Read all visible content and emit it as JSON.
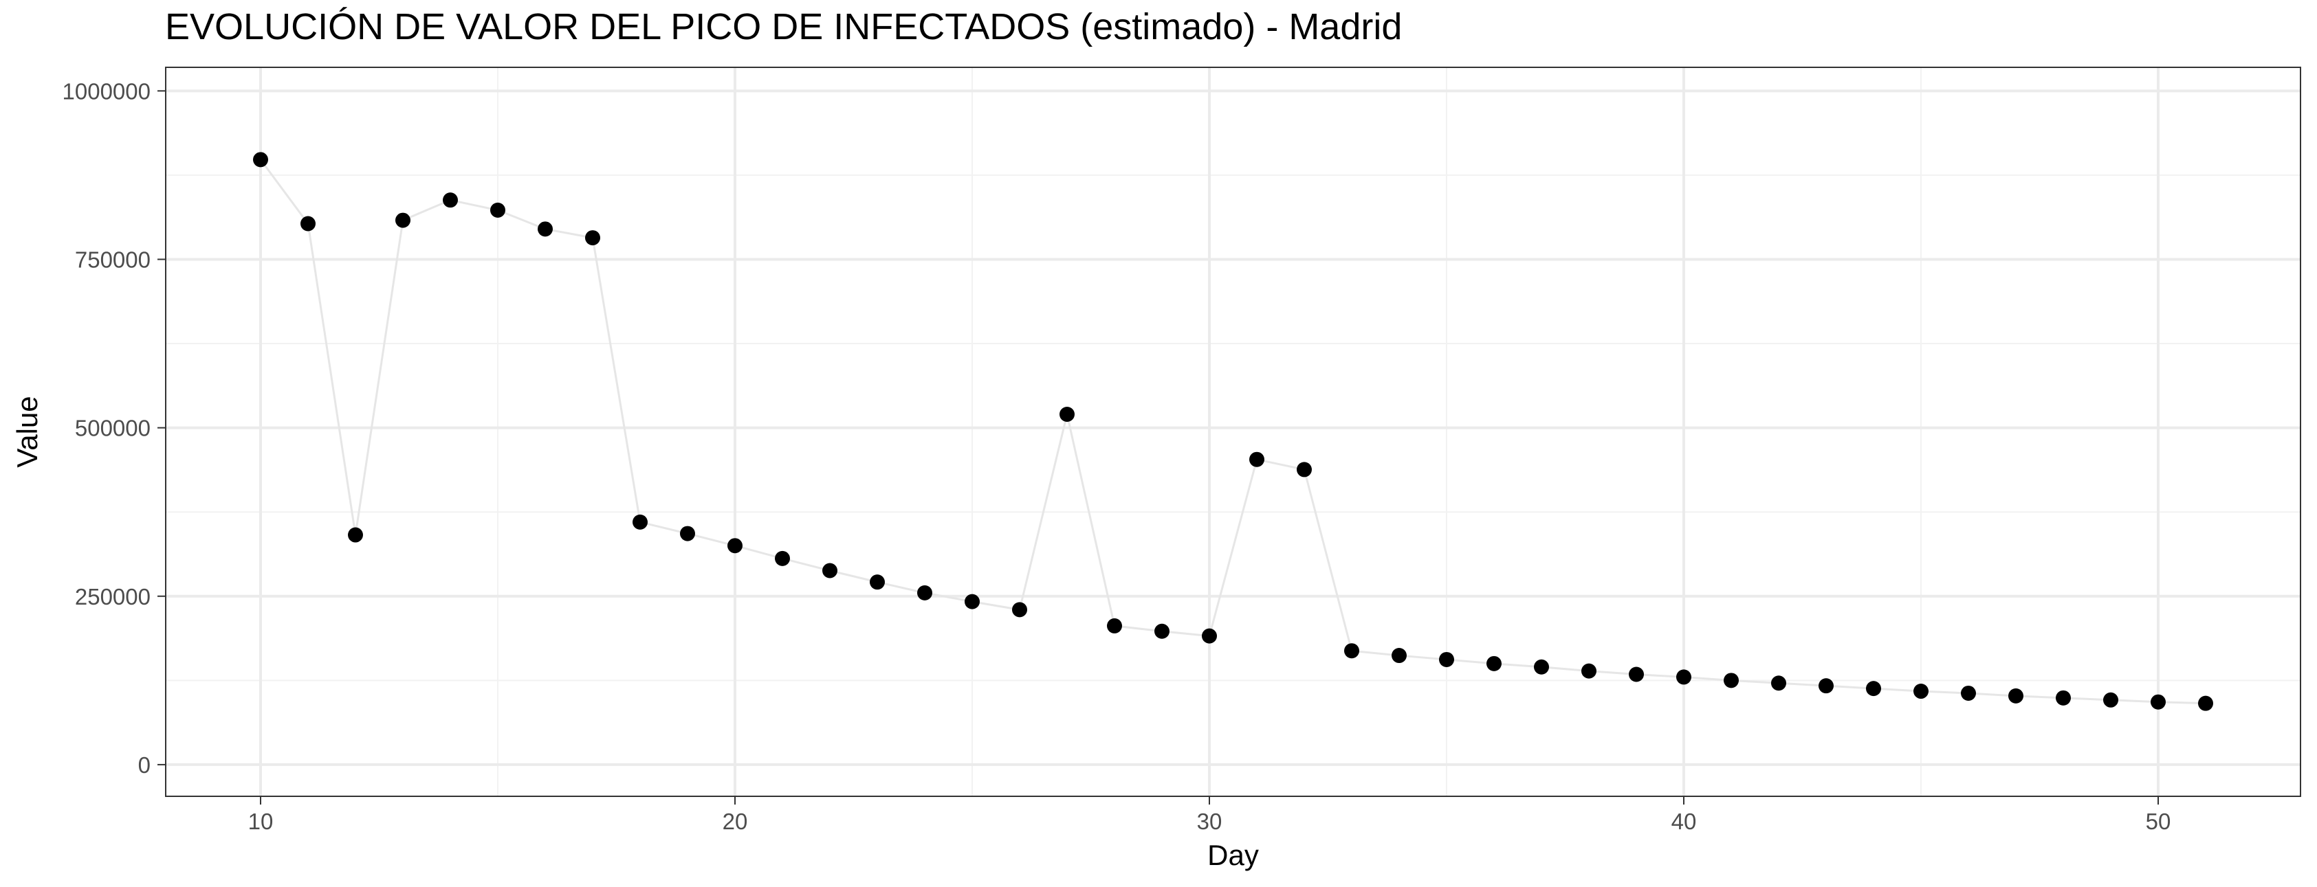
{
  "chart_data": {
    "type": "scatter",
    "title": "EVOLUCIÓN DE VALOR DEL PICO DE INFECTADOS (estimado) - Madrid",
    "xlabel": "Day",
    "ylabel": "Value",
    "xlim": [
      8,
      53
    ],
    "ylim": [
      -47000,
      1035000
    ],
    "x_ticks": [
      10,
      20,
      30,
      40,
      50
    ],
    "y_ticks": [
      0,
      250000,
      500000,
      750000,
      1000000
    ],
    "grid": true,
    "legend": "none",
    "point_color": "#000000",
    "line_color": "#e6e6e6",
    "x": [
      10,
      11,
      12,
      13,
      14,
      15,
      16,
      17,
      18,
      19,
      20,
      21,
      22,
      23,
      24,
      25,
      26,
      27,
      28,
      29,
      30,
      31,
      32,
      33,
      34,
      35,
      36,
      37,
      38,
      39,
      40,
      41,
      42,
      43,
      44,
      45,
      46,
      47,
      48,
      49,
      50,
      51
    ],
    "y": [
      898000,
      803000,
      341000,
      808000,
      838000,
      823000,
      795000,
      782000,
      360000,
      343000,
      325000,
      306000,
      288000,
      271000,
      255000,
      242000,
      230000,
      520000,
      206000,
      198000,
      191000,
      453000,
      438000,
      169000,
      162000,
      156000,
      150000,
      145000,
      139000,
      134000,
      130000,
      125000,
      121000,
      117000,
      113000,
      109000,
      106000,
      102000,
      99000,
      96000,
      93000,
      91000
    ]
  }
}
